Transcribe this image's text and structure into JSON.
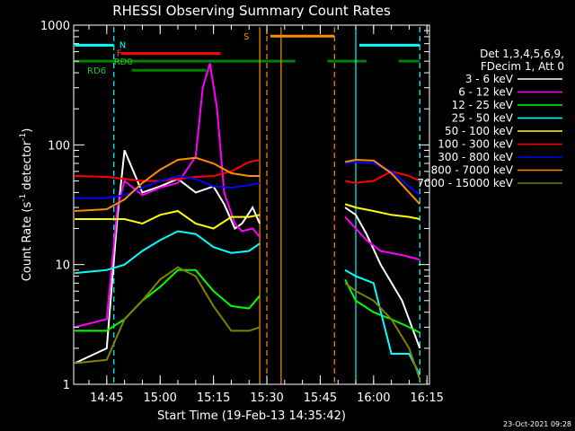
{
  "chart_data": {
    "type": "line",
    "title": "RHESSI Observing Summary Count Rates",
    "xlabel": "Start Time (19-Feb-13 14:35:42)",
    "ylabel_prefix": "Count Rate (s",
    "ylabel_mid": " detector",
    "ylabel_sup": "-1",
    "ylabel_suffix": ")",
    "yscale": "log",
    "ylim": [
      1,
      1000
    ],
    "xlim_minutes": [
      "14:35:42",
      "16:15:42"
    ],
    "x_ticks": [
      "14:45",
      "15:00",
      "15:15",
      "15:30",
      "15:45",
      "16:00",
      "16:15"
    ],
    "y_ticks": [
      "1",
      "10",
      "100",
      "1000"
    ],
    "legend_header": [
      "Det 1,3,4,5,6,9,",
      "FDecim 1, Att 0"
    ],
    "legend_position": "right",
    "series": [
      {
        "name": "3 - 6 keV",
        "color": "#ffffff",
        "x": [
          "14:36",
          "14:45",
          "14:48",
          "14:50",
          "14:55",
          "15:00",
          "15:05",
          "15:10",
          "15:15",
          "15:18",
          "15:21",
          "15:23",
          "15:26",
          "15:28",
          "15:52",
          "15:55",
          "15:58",
          "16:02",
          "16:08",
          "16:13"
        ],
        "y": [
          1.5,
          2.0,
          25,
          90,
          40,
          45,
          52,
          40,
          45,
          32,
          20,
          22,
          30,
          22,
          30,
          26,
          18,
          10,
          5,
          2
        ]
      },
      {
        "name": "6 - 12 keV",
        "color": "#ff00ff",
        "x": [
          "14:36",
          "14:45",
          "14:48",
          "14:50",
          "14:55",
          "15:00",
          "15:05",
          "15:10",
          "15:12",
          "15:14",
          "15:16",
          "15:18",
          "15:21",
          "15:23",
          "15:26",
          "15:28",
          "15:52",
          "15:55",
          "15:58",
          "16:02",
          "16:08",
          "16:13"
        ],
        "y": [
          3.0,
          3.5,
          30,
          50,
          38,
          44,
          48,
          80,
          300,
          480,
          200,
          40,
          22,
          19,
          20,
          17,
          25,
          20,
          16,
          13,
          12,
          11
        ]
      },
      {
        "name": "12 - 25 keV",
        "color": "#00ff00",
        "x": [
          "14:36",
          "14:45",
          "14:50",
          "14:55",
          "15:00",
          "15:05",
          "15:10",
          "15:15",
          "15:20",
          "15:25",
          "15:28",
          "15:52",
          "15:55",
          "16:00",
          "16:05",
          "16:10",
          "16:13"
        ],
        "y": [
          2.8,
          2.8,
          3.5,
          5,
          6.5,
          9,
          9,
          6,
          4.5,
          4.3,
          5.5,
          7.5,
          5,
          4,
          3.5,
          3,
          2.7
        ]
      },
      {
        "name": "25 - 50 keV",
        "color": "#00ffff",
        "x": [
          "14:36",
          "14:45",
          "14:50",
          "14:55",
          "15:00",
          "15:05",
          "15:10",
          "15:15",
          "15:20",
          "15:25",
          "15:28",
          "15:52",
          "15:55",
          "16:00",
          "16:05",
          "16:10",
          "16:13"
        ],
        "y": [
          8.5,
          9,
          10,
          13,
          16,
          19,
          18,
          14,
          12.5,
          13,
          15,
          9,
          8,
          7,
          1.8,
          1.8,
          1.2
        ]
      },
      {
        "name": "50 - 100 keV",
        "color": "#ffff00",
        "x": [
          "14:36",
          "14:45",
          "14:50",
          "14:55",
          "15:00",
          "15:05",
          "15:10",
          "15:15",
          "15:20",
          "15:25",
          "15:28",
          "15:52",
          "15:55",
          "16:00",
          "16:05",
          "16:10",
          "16:13"
        ],
        "y": [
          24,
          24,
          24,
          22,
          26,
          28,
          22,
          20,
          25,
          25,
          26,
          32,
          30,
          28,
          26,
          25,
          24
        ]
      },
      {
        "name": "100 - 300 keV",
        "color": "#ff0000",
        "x": [
          "14:36",
          "14:45",
          "14:50",
          "14:55",
          "15:00",
          "15:05",
          "15:10",
          "15:15",
          "15:20",
          "15:25",
          "15:28",
          "15:52",
          "15:55",
          "16:00",
          "16:05",
          "16:10",
          "16:13"
        ],
        "y": [
          55,
          54,
          52,
          50,
          50,
          52,
          54,
          55,
          60,
          72,
          75,
          50,
          48,
          50,
          60,
          55,
          50
        ]
      },
      {
        "name": "300 - 800 keV",
        "color": "#0000ff",
        "x": [
          "14:36",
          "14:45",
          "14:50",
          "14:55",
          "15:00",
          "15:05",
          "15:10",
          "15:15",
          "15:20",
          "15:25",
          "15:28",
          "15:52",
          "15:55",
          "16:00",
          "16:05",
          "16:10",
          "16:13"
        ],
        "y": [
          36,
          36,
          38,
          44,
          50,
          55,
          52,
          45,
          44,
          46,
          48,
          70,
          72,
          70,
          60,
          45,
          38
        ]
      },
      {
        "name": "800 - 7000 keV",
        "color": "#ff8c00",
        "x": [
          "14:36",
          "14:45",
          "14:50",
          "14:55",
          "15:00",
          "15:05",
          "15:10",
          "15:15",
          "15:20",
          "15:25",
          "15:28",
          "15:52",
          "15:55",
          "16:00",
          "16:05",
          "16:10",
          "16:13"
        ],
        "y": [
          28,
          29,
          35,
          48,
          62,
          75,
          78,
          70,
          58,
          55,
          55,
          72,
          75,
          74,
          58,
          40,
          32
        ]
      },
      {
        "name": "7000 - 15000 keV",
        "color": "#808000",
        "x": [
          "14:36",
          "14:45",
          "14:50",
          "14:55",
          "15:00",
          "15:05",
          "15:10",
          "15:15",
          "15:20",
          "15:25",
          "15:28",
          "15:52",
          "15:55",
          "16:00",
          "16:05",
          "16:10",
          "16:13"
        ],
        "y": [
          1.5,
          1.6,
          3.5,
          5,
          7.5,
          9.5,
          8,
          4.5,
          2.8,
          2.8,
          3,
          7,
          6,
          5,
          3.5,
          2,
          1.1
        ]
      }
    ],
    "flag_bars": [
      {
        "label": "N",
        "color": "#00ffff",
        "level": 680,
        "segments": [
          [
            "14:36",
            "14:47"
          ],
          [
            "15:56",
            "16:13"
          ]
        ]
      },
      {
        "label": "F",
        "color": "#ff0000",
        "level": 580,
        "segments": [
          [
            "14:49",
            "15:17"
          ]
        ]
      },
      {
        "label": "S",
        "color": "#ff8c00",
        "level": 810,
        "segments": [
          [
            "15:31",
            "15:49"
          ]
        ]
      },
      {
        "label": "RD0",
        "color": "#008000",
        "level": 500,
        "segments": [
          [
            "14:36",
            "15:38"
          ],
          [
            "15:47",
            "15:58"
          ],
          [
            "16:07",
            "16:13"
          ]
        ]
      },
      {
        "label": "RD6",
        "color": "#008000",
        "level": 420,
        "segments": [
          [
            "14:52",
            "15:13"
          ]
        ]
      }
    ],
    "vertical_lines": [
      {
        "color": "#00ffff",
        "style": "dashed",
        "time": "14:47"
      },
      {
        "color": "#00ffff",
        "style": "solid",
        "time": "15:55"
      },
      {
        "color": "#00ffff",
        "style": "dashed",
        "time": "16:13"
      },
      {
        "color": "#ff8c00",
        "style": "solid",
        "time": "15:28"
      },
      {
        "color": "#ff8c00",
        "style": "dashed",
        "time": "15:30"
      },
      {
        "color": "#ff8c00",
        "style": "solid",
        "time": "15:34"
      },
      {
        "color": "#ff8c00",
        "style": "dashed",
        "time": "15:49"
      }
    ]
  },
  "legend": {
    "header_line1": "Det 1,3,4,5,6,9,",
    "header_line2": "FDecim 1, Att 0"
  },
  "flags": {
    "n": "N",
    "f": "F",
    "s": "S",
    "rd0": "RD0",
    "rd6": "RD6"
  },
  "footer": {
    "timestamp": "23-Oct-2021 09:28"
  }
}
